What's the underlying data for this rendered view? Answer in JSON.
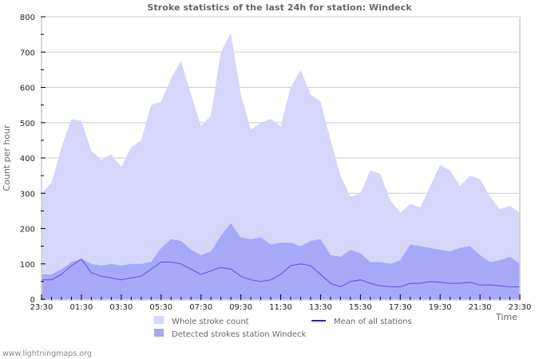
{
  "header": {
    "title": "Stroke statistics of the last 24h for station: Windeck"
  },
  "footer": {
    "credit": "www.lightningmaps.org"
  },
  "colors": {
    "whole": "#d6d6fa",
    "detected": "#a8a8f8",
    "mean": "#2020e0",
    "grid": "#cccccc",
    "axis": "#cccccc"
  },
  "chart_data": {
    "type": "area",
    "title": "Stroke statistics of the last 24h for station: Windeck",
    "xlabel": "Time",
    "ylabel": "Count per hour",
    "ylim": [
      0,
      800
    ],
    "yticks": [
      0,
      100,
      200,
      300,
      400,
      500,
      600,
      700,
      800
    ],
    "xtick_labels": [
      "23:30",
      "01:30",
      "03:30",
      "05:30",
      "07:30",
      "09:30",
      "11:30",
      "13:30",
      "15:30",
      "17:30",
      "19:30",
      "21:30",
      "23:30"
    ],
    "grid": true,
    "legend_position": "bottom",
    "x": [
      "23:30",
      "00:00",
      "00:30",
      "01:00",
      "01:30",
      "02:00",
      "02:30",
      "03:00",
      "03:30",
      "04:00",
      "04:30",
      "05:00",
      "05:30",
      "06:00",
      "06:30",
      "07:00",
      "07:30",
      "08:00",
      "08:30",
      "09:00",
      "09:30",
      "10:00",
      "10:30",
      "11:00",
      "11:30",
      "12:00",
      "12:30",
      "13:00",
      "13:30",
      "14:00",
      "14:30",
      "15:00",
      "15:30",
      "16:00",
      "16:30",
      "17:00",
      "17:30",
      "18:00",
      "18:30",
      "19:00",
      "19:30",
      "20:00",
      "20:30",
      "21:00",
      "21:30",
      "22:00",
      "22:30",
      "23:00",
      "23:30"
    ],
    "series": [
      {
        "name": "Whole stroke count",
        "kind": "area",
        "values": [
          300,
          330,
          430,
          510,
          505,
          420,
          395,
          410,
          375,
          430,
          450,
          550,
          560,
          625,
          675,
          580,
          490,
          520,
          700,
          755,
          580,
          480,
          500,
          510,
          490,
          600,
          650,
          580,
          560,
          450,
          350,
          290,
          300,
          365,
          355,
          280,
          245,
          270,
          260,
          320,
          380,
          365,
          320,
          350,
          340,
          290,
          255,
          265,
          245
        ]
      },
      {
        "name": "Detected strokes station Windeck",
        "kind": "area",
        "values": [
          70,
          70,
          85,
          105,
          115,
          100,
          95,
          100,
          95,
          100,
          100,
          105,
          145,
          170,
          165,
          140,
          125,
          135,
          180,
          215,
          175,
          170,
          175,
          155,
          160,
          160,
          150,
          165,
          170,
          125,
          120,
          140,
          130,
          105,
          105,
          100,
          110,
          155,
          150,
          145,
          140,
          135,
          145,
          150,
          125,
          105,
          110,
          120,
          100
        ]
      },
      {
        "name": "Mean of all stations",
        "kind": "line",
        "values": [
          55,
          55,
          70,
          95,
          113,
          75,
          65,
          60,
          55,
          60,
          65,
          85,
          105,
          105,
          100,
          85,
          70,
          80,
          90,
          85,
          65,
          55,
          50,
          55,
          70,
          95,
          100,
          95,
          70,
          45,
          35,
          50,
          55,
          45,
          38,
          35,
          35,
          45,
          45,
          50,
          48,
          45,
          45,
          48,
          40,
          40,
          38,
          35,
          35
        ]
      }
    ]
  },
  "legend": {
    "items": [
      {
        "label": "Whole stroke count"
      },
      {
        "label": "Detected strokes station Windeck"
      },
      {
        "label": "Mean of all stations"
      }
    ]
  }
}
